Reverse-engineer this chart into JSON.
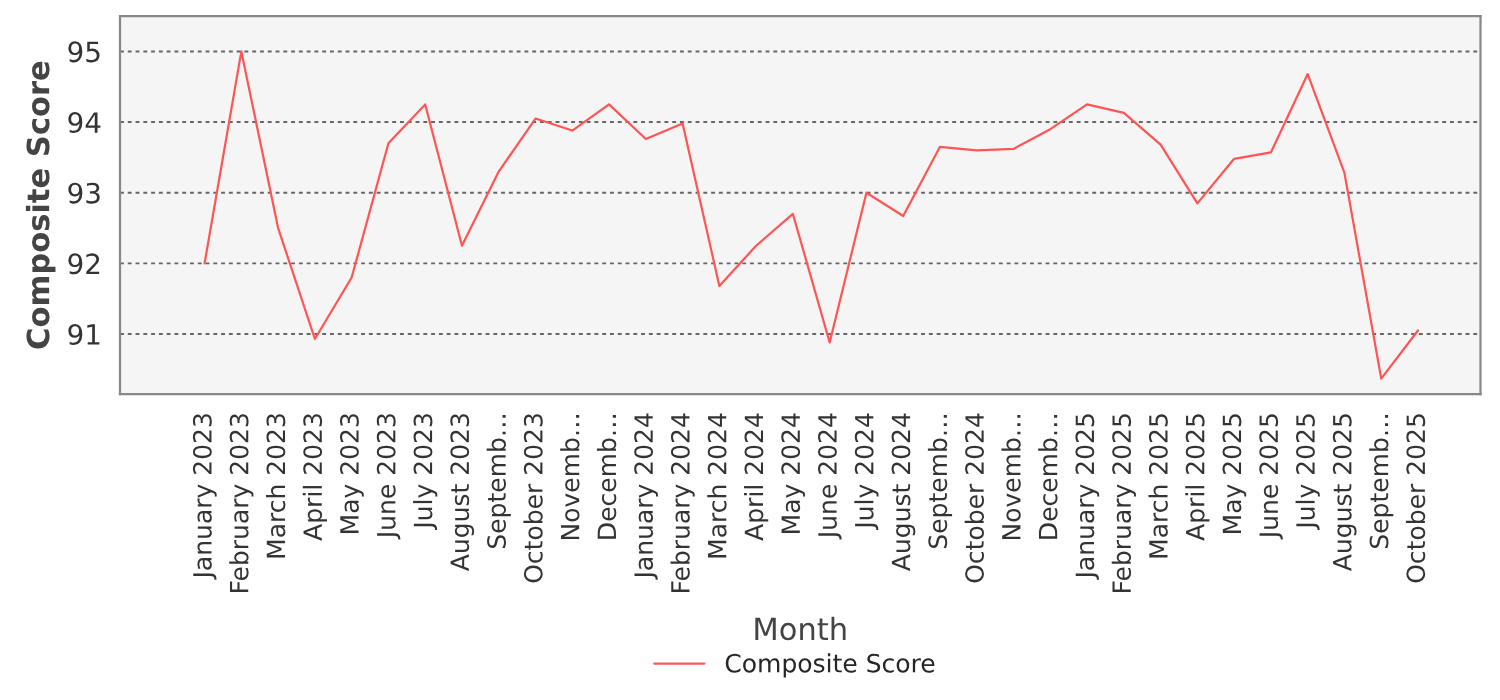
{
  "chart_data": {
    "type": "line",
    "xlabel": "Month",
    "ylabel": "Composite Score",
    "categories": [
      "January 2023",
      "February 2023",
      "March 2023",
      "April 2023",
      "May 2023",
      "June 2023",
      "July 2023",
      "August 2023",
      "Septemb…",
      "October 2023",
      "Novemb…",
      "Decemb…",
      "January 2024",
      "February 2024",
      "March 2024",
      "April 2024",
      "May 2024",
      "June 2024",
      "July 2024",
      "August 2024",
      "Septemb…",
      "October 2024",
      "Novemb…",
      "Decemb…",
      "January 2025",
      "February 2025",
      "March 2025",
      "April 2025",
      "May 2025",
      "June 2025",
      "July 2025",
      "August 2025",
      "Septemb…",
      "October 2025"
    ],
    "series": [
      {
        "name": "Composite Score",
        "color": "#ff5555",
        "values": [
          92.0,
          95.0,
          92.5,
          90.93,
          91.8,
          93.7,
          94.25,
          92.25,
          93.3,
          94.05,
          93.88,
          94.25,
          93.76,
          93.98,
          91.68,
          92.25,
          92.7,
          90.88,
          93.0,
          92.67,
          93.65,
          93.6,
          93.62,
          93.9,
          94.25,
          94.13,
          93.68,
          92.85,
          93.48,
          93.57,
          94.68,
          93.28,
          90.37,
          91.05
        ]
      }
    ],
    "ylim": [
      90.15,
      95.5
    ],
    "yticks": [
      91,
      92,
      93,
      94,
      95
    ],
    "grid": "y",
    "legend": "bottom",
    "marker": "none",
    "line_style": "solid"
  }
}
